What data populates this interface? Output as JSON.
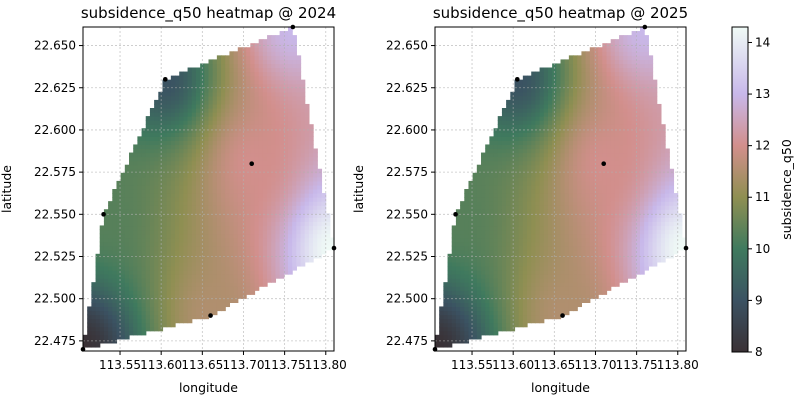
{
  "chart_data": [
    {
      "type": "heatmap",
      "title": "subsidence_q50 heatmap @ 2024",
      "xlabel": "longitude",
      "ylabel": "latitude",
      "xlim": [
        113.505,
        113.81
      ],
      "ylim": [
        22.469,
        22.661
      ],
      "xticks": [
        113.55,
        113.6,
        113.65,
        113.7,
        113.75,
        113.8
      ],
      "xtick_labels": [
        "113.55",
        "113.60",
        "113.65",
        "113.70",
        "113.75",
        "113.80"
      ],
      "yticks": [
        22.475,
        22.5,
        22.525,
        22.55,
        22.575,
        22.6,
        22.625,
        22.65
      ],
      "ytick_labels": [
        "22.475",
        "22.500",
        "22.525",
        "22.550",
        "22.575",
        "22.600",
        "22.625",
        "22.650"
      ],
      "grid": true,
      "value_range": [
        8,
        14.3
      ],
      "stations": [
        {
          "lon": 113.505,
          "lat": 22.47,
          "value": 8.0
        },
        {
          "lon": 113.53,
          "lat": 22.55,
          "value": 10.3
        },
        {
          "lon": 113.605,
          "lat": 22.63,
          "value": 9.0
        },
        {
          "lon": 113.66,
          "lat": 22.49,
          "value": 11.5
        },
        {
          "lon": 113.71,
          "lat": 22.58,
          "value": 12.0
        },
        {
          "lon": 113.76,
          "lat": 22.661,
          "value": 13.0
        },
        {
          "lon": 113.81,
          "lat": 22.53,
          "value": 14.3
        }
      ]
    },
    {
      "type": "heatmap",
      "title": "subsidence_q50 heatmap @ 2025",
      "xlabel": "longitude",
      "ylabel": "latitude",
      "xlim": [
        113.505,
        113.81
      ],
      "ylim": [
        22.469,
        22.661
      ],
      "xticks": [
        113.55,
        113.6,
        113.65,
        113.7,
        113.75,
        113.8
      ],
      "xtick_labels": [
        "113.55",
        "113.60",
        "113.65",
        "113.70",
        "113.75",
        "113.80"
      ],
      "yticks": [
        22.475,
        22.5,
        22.525,
        22.55,
        22.575,
        22.6,
        22.625,
        22.65
      ],
      "ytick_labels": [
        "22.475",
        "22.500",
        "22.525",
        "22.550",
        "22.575",
        "22.600",
        "22.625",
        "22.650"
      ],
      "grid": true,
      "value_range": [
        8,
        14.3
      ],
      "stations": [
        {
          "lon": 113.505,
          "lat": 22.47,
          "value": 8.0
        },
        {
          "lon": 113.53,
          "lat": 22.55,
          "value": 10.3
        },
        {
          "lon": 113.605,
          "lat": 22.63,
          "value": 9.0
        },
        {
          "lon": 113.66,
          "lat": 22.49,
          "value": 11.5
        },
        {
          "lon": 113.71,
          "lat": 22.58,
          "value": 12.0
        },
        {
          "lon": 113.76,
          "lat": 22.661,
          "value": 13.0
        },
        {
          "lon": 113.81,
          "lat": 22.53,
          "value": 14.3
        }
      ]
    }
  ],
  "colorbar": {
    "label": "subsidence_q50",
    "range": [
      8,
      14.3
    ],
    "ticks": [
      8,
      9,
      10,
      11,
      12,
      13,
      14
    ],
    "tick_labels": [
      "8",
      "9",
      "10",
      "11",
      "12",
      "13",
      "14"
    ],
    "colormap": "cubehelix-like",
    "stops": [
      {
        "v": 8.0,
        "color": "#3a3135"
      },
      {
        "v": 9.0,
        "color": "#3b5262"
      },
      {
        "v": 10.0,
        "color": "#3f7a5e"
      },
      {
        "v": 11.0,
        "color": "#8f8f52"
      },
      {
        "v": 12.0,
        "color": "#d28f8c"
      },
      {
        "v": 13.0,
        "color": "#c8b8ea"
      },
      {
        "v": 14.3,
        "color": "#f0fbf6"
      }
    ]
  }
}
